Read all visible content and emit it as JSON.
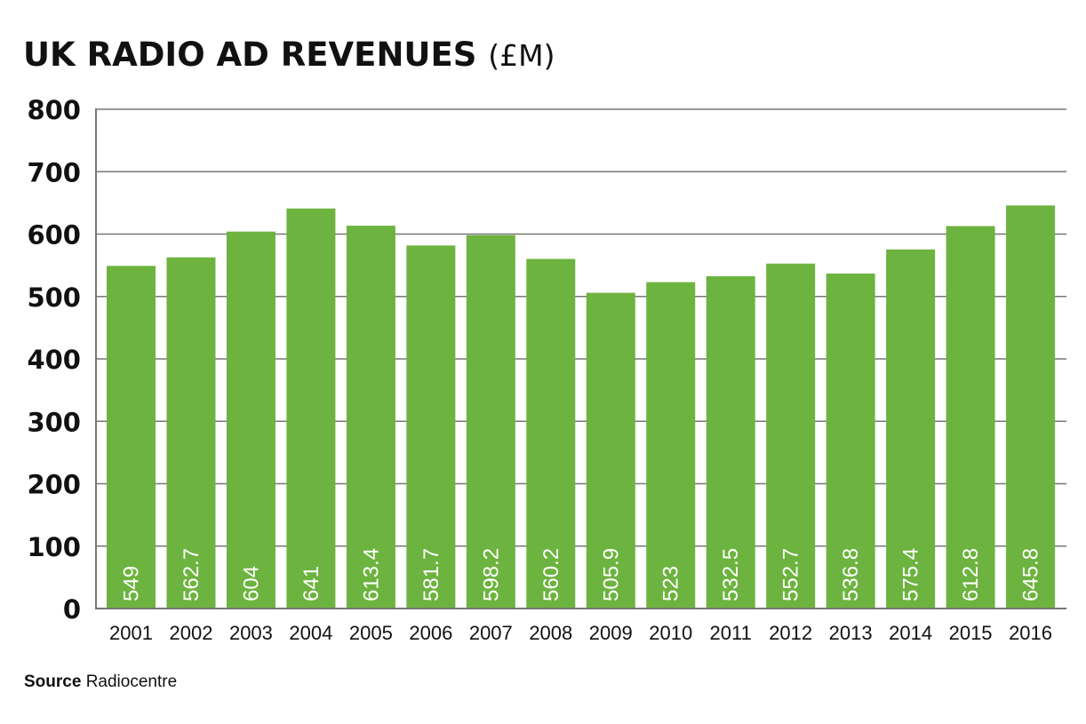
{
  "chart_data": {
    "type": "bar",
    "title": "UK RADIO AD REVENUES",
    "title_unit": "(£M)",
    "xlabel": "",
    "ylabel": "",
    "categories": [
      "2001",
      "2002",
      "2003",
      "2004",
      "2005",
      "2006",
      "2007",
      "2008",
      "2009",
      "2010",
      "2011",
      "2012",
      "2013",
      "2014",
      "2015",
      "2016"
    ],
    "values": [
      549,
      562.7,
      604,
      641,
      613.4,
      581.7,
      598.2,
      560.2,
      505.9,
      523,
      532.5,
      552.7,
      536.8,
      575.4,
      612.8,
      645.8
    ],
    "data_labels": [
      "549",
      "562.7",
      "604",
      "641",
      "613.4",
      "581.7",
      "598.2",
      "560.2",
      "505.9",
      "523",
      "532.5",
      "552.7",
      "536.8",
      "575.4",
      "612.8",
      "645.8"
    ],
    "ylim": [
      0,
      800
    ],
    "yticks": [
      "0",
      "100",
      "200",
      "300",
      "400",
      "500",
      "600",
      "700",
      "800"
    ],
    "grid": true,
    "legend": "none",
    "bar_color": "#6db33f",
    "source_label": "Source",
    "source_value": "Radiocentre"
  }
}
